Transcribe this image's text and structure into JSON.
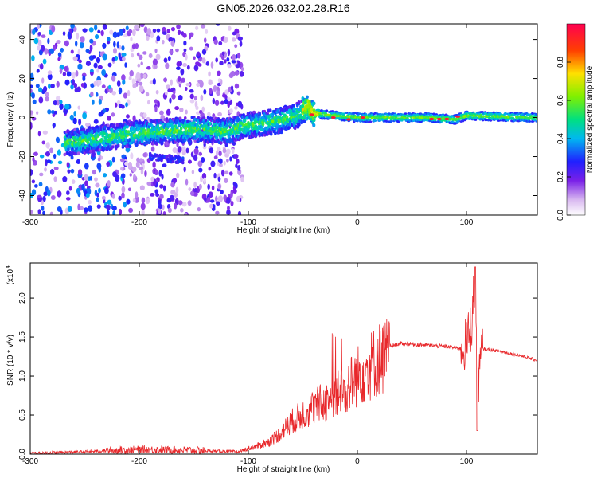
{
  "figure_title": "GN05.2026.032.02.28.R16",
  "chart_data": [
    {
      "type": "heatmap",
      "title": "GN05.2026.032.02.28.R16",
      "xlabel": "Height of straight line (km)",
      "ylabel": "Frequency (Hz)",
      "xlim": [
        -300,
        165
      ],
      "ylim": [
        -50,
        48
      ],
      "xticks": [
        -300,
        -200,
        -100,
        0,
        100
      ],
      "yticks": [
        -40,
        -20,
        0,
        20,
        40
      ],
      "colorbar": {
        "label": "Normalized spectral amplitude",
        "range": [
          0,
          1
        ],
        "ticks": [
          0.0,
          0.2,
          0.4,
          0.6,
          0.8
        ],
        "colormap": [
          "#ffffff",
          "#b87fe6",
          "#5a10e0",
          "#1030ff",
          "#00c8f0",
          "#00e070",
          "#90f000",
          "#ffd000",
          "#ff3000",
          "#ff0050"
        ]
      },
      "ridge": {
        "description_points": [
          {
            "x": -265,
            "y": -13
          },
          {
            "x": -240,
            "y": -11
          },
          {
            "x": -200,
            "y": -8
          },
          {
            "x": -150,
            "y": -6
          },
          {
            "x": -120,
            "y": -7
          },
          {
            "x": -100,
            "y": -4
          },
          {
            "x": -75,
            "y": -2
          },
          {
            "x": -55,
            "y": 1
          },
          {
            "x": -45,
            "y": 6
          },
          {
            "x": -40,
            "y": 2
          },
          {
            "x": 0,
            "y": 0
          },
          {
            "x": 65,
            "y": 0
          },
          {
            "x": 90,
            "y": -1
          },
          {
            "x": 100,
            "y": 1
          },
          {
            "x": 165,
            "y": 0
          }
        ],
        "secondary_branch": [
          {
            "x": -190,
            "y": -20
          },
          {
            "x": -160,
            "y": -22
          }
        ],
        "peak_amplitude": 1.0
      },
      "grid": false
    },
    {
      "type": "line",
      "title": "",
      "xlabel": "Height of straight line (km)",
      "ylabel": "SNR (10 * v/v)",
      "y_scale_label": "(x10",
      "y_scale_exponent": "4",
      "xlim": [
        -300,
        165
      ],
      "ylim": [
        0,
        2.45
      ],
      "xticks": [
        -300,
        -200,
        -100,
        0,
        100
      ],
      "yticks": [
        0.0,
        0.5,
        1.0,
        1.5,
        2.0
      ],
      "ytick_labels": [
        "0.0",
        "0.5",
        "1.0",
        "1.5",
        "2.0"
      ],
      "color": "#e8282b",
      "x": [
        -300,
        -250,
        -200,
        -150,
        -110,
        -100,
        -90,
        -80,
        -70,
        -60,
        -50,
        -40,
        -30,
        -20,
        -10,
        0,
        10,
        20,
        30,
        40,
        60,
        80,
        95,
        100,
        105,
        108,
        110,
        115,
        130,
        150,
        165
      ],
      "y": [
        0.01,
        0.03,
        0.06,
        0.05,
        0.03,
        0.08,
        0.12,
        0.18,
        0.3,
        0.45,
        0.55,
        0.65,
        0.72,
        0.8,
        0.92,
        1.08,
        1.2,
        1.32,
        1.38,
        1.42,
        1.4,
        1.38,
        1.35,
        1.4,
        1.7,
        2.3,
        0.9,
        1.35,
        1.32,
        1.26,
        1.2
      ],
      "grid": false
    }
  ]
}
